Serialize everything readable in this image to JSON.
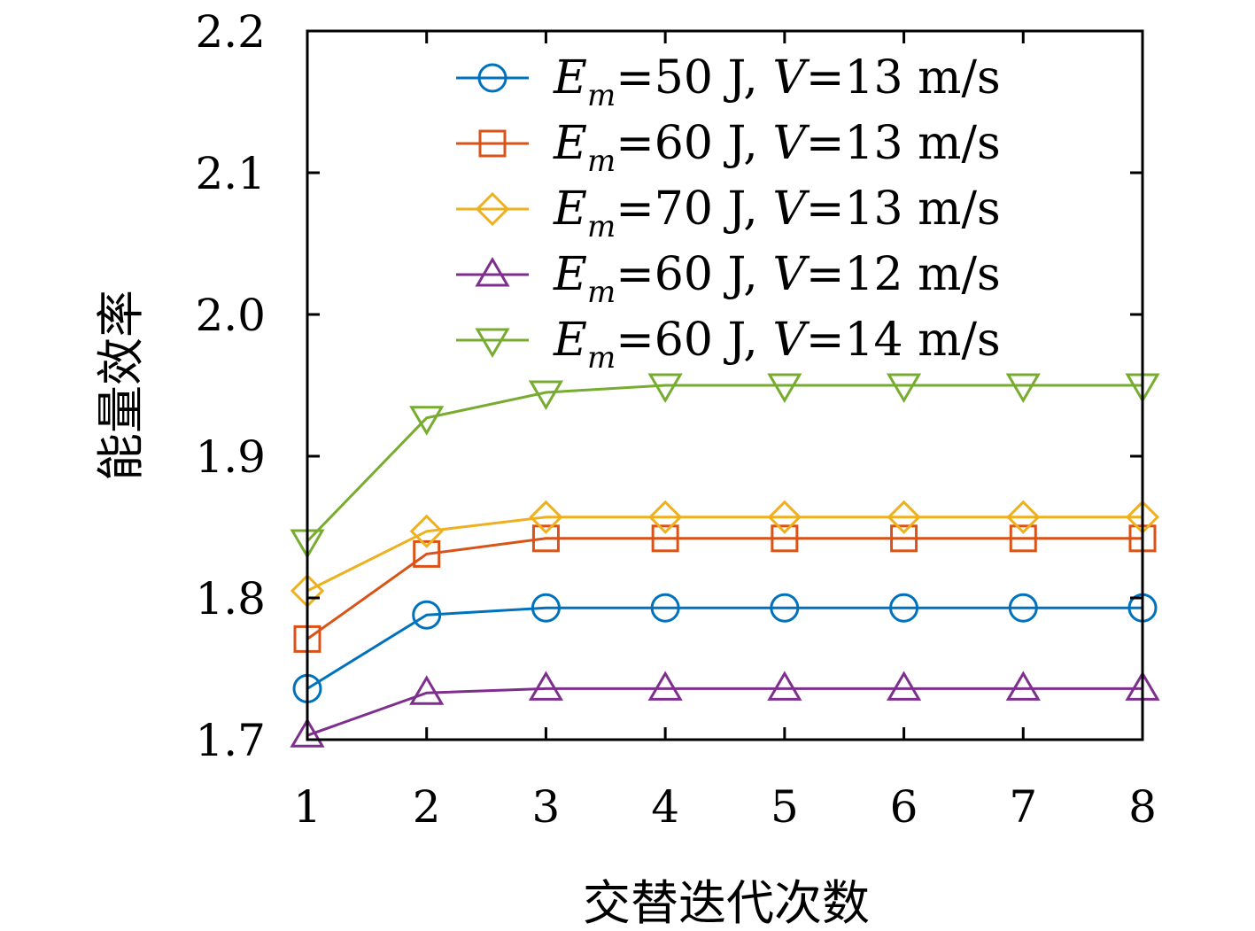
{
  "chart_data": {
    "type": "line",
    "xlabel": "交替迭代次数",
    "ylabel": "能量效率",
    "x": [
      1,
      2,
      3,
      4,
      5,
      6,
      7,
      8
    ],
    "xlim": [
      1,
      8
    ],
    "ylim": [
      1.7,
      2.2
    ],
    "xticks": [
      "1",
      "2",
      "3",
      "4",
      "5",
      "6",
      "7",
      "8"
    ],
    "yticks": [
      "1.7",
      "1.8",
      "1.9",
      "2.0",
      "2.1",
      "2.2"
    ],
    "grid": false,
    "legend_position": "top-right",
    "series": [
      {
        "legend": {
          "em": "E",
          "sub": "m",
          "rest1": "=50 J, ",
          "v": "V",
          "rest2": "=13 m/s"
        },
        "marker": "circle",
        "color": "#0072BD",
        "values": [
          1.736,
          1.788,
          1.793,
          1.793,
          1.793,
          1.793,
          1.793,
          1.793
        ]
      },
      {
        "legend": {
          "em": "E",
          "sub": "m",
          "rest1": "=60 J, ",
          "v": "V",
          "rest2": "=13 m/s"
        },
        "marker": "square",
        "color": "#D95319",
        "values": [
          1.771,
          1.831,
          1.842,
          1.842,
          1.842,
          1.842,
          1.842,
          1.842
        ]
      },
      {
        "legend": {
          "em": "E",
          "sub": "m",
          "rest1": "=70 J, ",
          "v": "V",
          "rest2": "=13 m/s"
        },
        "marker": "diamond",
        "color": "#EDB120",
        "values": [
          1.805,
          1.847,
          1.857,
          1.857,
          1.857,
          1.857,
          1.857,
          1.857
        ]
      },
      {
        "legend": {
          "em": "E",
          "sub": "m",
          "rest1": "=60 J, ",
          "v": "V",
          "rest2": "=12 m/s"
        },
        "marker": "triangle-up",
        "color": "#7E2F8E",
        "values": [
          1.703,
          1.733,
          1.736,
          1.736,
          1.736,
          1.736,
          1.736,
          1.736
        ]
      },
      {
        "legend": {
          "em": "E",
          "sub": "m",
          "rest1": "=60 J, ",
          "v": "V",
          "rest2": "=14 m/s"
        },
        "marker": "triangle-down",
        "color": "#77AC30",
        "values": [
          1.84,
          1.927,
          1.945,
          1.95,
          1.95,
          1.95,
          1.95,
          1.95
        ]
      }
    ]
  }
}
